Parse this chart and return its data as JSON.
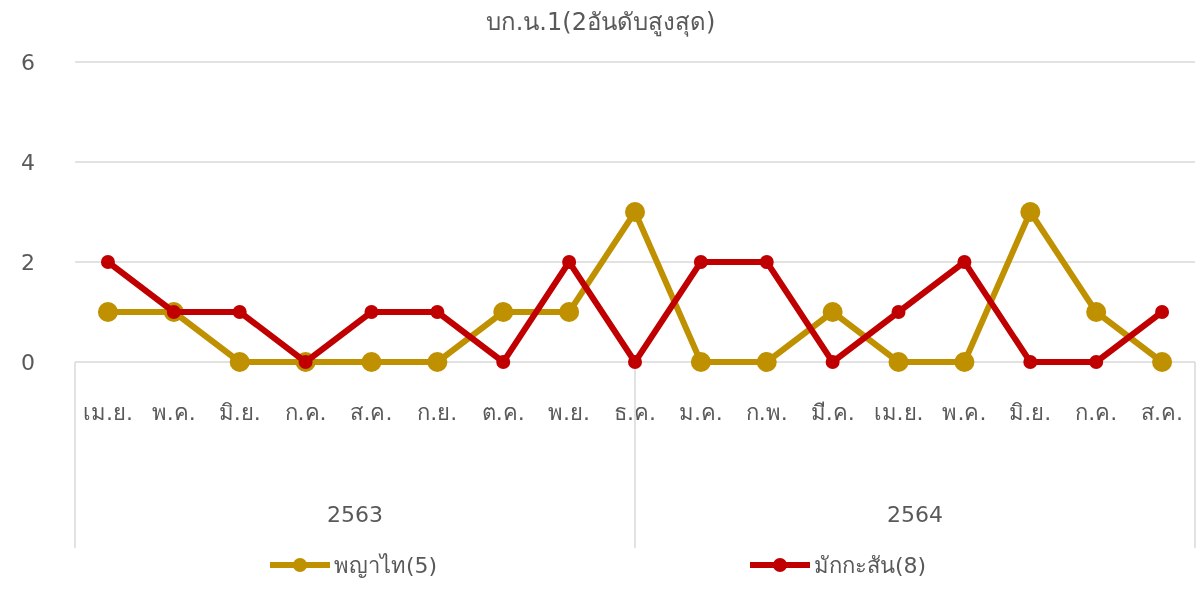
{
  "chart_data": {
    "type": "line",
    "title": "บก.น.1(2อันดับสูงสุด)",
    "categories": [
      "เม.ย.",
      "พ.ค.",
      "มิ.ย.",
      "ก.ค.",
      "ส.ค.",
      "ก.ย.",
      "ต.ค.",
      "พ.ย.",
      "ธ.ค.",
      "ม.ค.",
      "ก.พ.",
      "มี.ค.",
      "เม.ย.",
      "พ.ค.",
      "มิ.ย.",
      "ก.ค.",
      "ส.ค."
    ],
    "series": [
      {
        "name": "พญาไท(5)",
        "color": "#bf9000",
        "values": [
          1,
          1,
          0,
          0,
          0,
          0,
          1,
          1,
          3,
          0,
          0,
          1,
          0,
          0,
          3,
          1,
          0
        ]
      },
      {
        "name": "มักกะสัน(8)",
        "color": "#c00000",
        "values": [
          2,
          1,
          1,
          0,
          1,
          1,
          0,
          2,
          0,
          2,
          2,
          0,
          1,
          2,
          0,
          0,
          1
        ]
      }
    ],
    "annotations": [
      "2563",
      "2564"
    ],
    "ylim": [
      0,
      6
    ],
    "yticks": [
      0,
      2,
      4,
      6
    ],
    "grid": "y",
    "legend": "bottom",
    "marker": "circle",
    "line_style": "solid"
  }
}
